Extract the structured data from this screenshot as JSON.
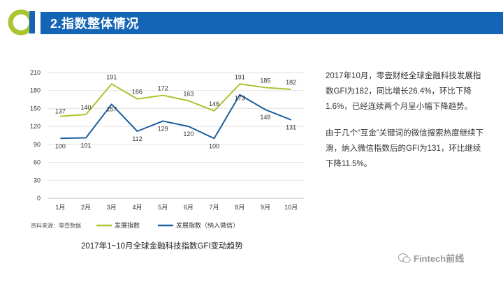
{
  "header": {
    "title": "2.指数整体情况"
  },
  "notes": {
    "paragraph1": "2017年10月，零壹财经全球金融科技发展指数GFI为182，同比增长26.4%，环比下降1.6%，已经连续两个月呈小幅下降趋势。",
    "paragraph2": "由于几个“互金”关键词的微信搜索热度继续下滑，纳入微信指数后的GFI为131，环比继续下降11.5%。"
  },
  "source": "资料来源：零壹数据",
  "caption": "2017年1~10月全球金融科技指数GFI变动趋势",
  "watermark": "Fintech前线",
  "colors": {
    "header": "#1565b7",
    "series1": "#a9c52f",
    "series2": "#1b5e9e"
  },
  "chart_data": {
    "type": "line",
    "categories": [
      "1月",
      "2月",
      "3月",
      "4月",
      "5月",
      "6月",
      "7月",
      "8月",
      "9月",
      "10月"
    ],
    "yticks": [
      "0",
      "30",
      "60",
      "90",
      "120",
      "150",
      "180",
      "210"
    ],
    "ylim": [
      0,
      210
    ],
    "grid": true,
    "legend_position": "bottom",
    "series": [
      {
        "name": "发展指数",
        "values": [
          137,
          140,
          191,
          166,
          172,
          163,
          146,
          191,
          185,
          182
        ],
        "labels": [
          "137",
          "140",
          "191",
          "166",
          "172",
          "163",
          "146",
          "191",
          "185",
          "182"
        ]
      },
      {
        "name": "发展指数（纳入微信）",
        "values": [
          100,
          101,
          157,
          112,
          129,
          120,
          100,
          173,
          148,
          131
        ],
        "labels": [
          "100",
          "101",
          "157",
          "112",
          "129",
          "120",
          "100",
          "173",
          "148",
          "131"
        ]
      }
    ]
  }
}
